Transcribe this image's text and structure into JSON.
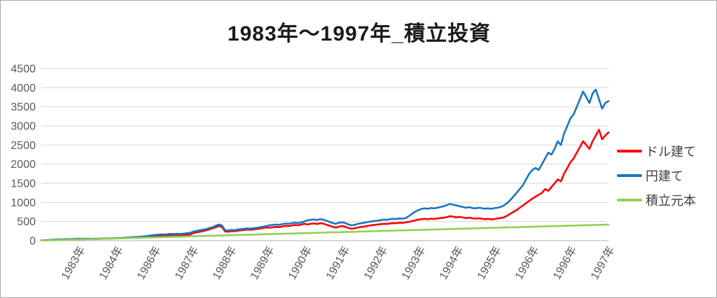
{
  "chart_data": {
    "type": "line",
    "title": "1983年〜1997年_積立投資",
    "x_tick_labels": [
      "1983年",
      "1984年",
      "1986年",
      "1987年",
      "1988年",
      "1989年",
      "1990年",
      "1991年",
      "1992年",
      "1993年",
      "1994年",
      "1995年",
      "1996年",
      "1996年",
      "1997年"
    ],
    "y_ticks": [
      0,
      500,
      1000,
      1500,
      2000,
      2500,
      3000,
      3500,
      4000,
      4500
    ],
    "ylim": [
      0,
      4500
    ],
    "grid": "horizontal",
    "legend_position": "right",
    "axis_label_color": "#595959",
    "gridline_color": "#d9d9d9",
    "axis_line_color": "#bfbfbf",
    "series": [
      {
        "name": "ドル建て",
        "color": "#ff0000",
        "values": [
          5,
          9,
          13,
          19,
          23,
          26,
          29,
          32,
          34,
          36,
          40,
          43,
          44,
          43,
          46,
          48,
          46,
          50,
          48,
          52,
          54,
          56,
          57,
          60,
          62,
          66,
          70,
          74,
          70,
          75,
          78,
          82,
          86,
          90,
          96,
          104,
          112,
          120,
          128,
          124,
          132,
          138,
          130,
          140,
          135,
          145,
          152,
          160,
          200,
          215,
          230,
          250,
          270,
          295,
          320,
          350,
          380,
          360,
          240,
          235,
          250,
          245,
          260,
          270,
          280,
          290,
          285,
          295,
          305,
          315,
          330,
          345,
          340,
          350,
          360,
          355,
          370,
          385,
          380,
          395,
          410,
          400,
          420,
          440,
          420,
          440,
          450,
          435,
          455,
          445,
          415,
          390,
          360,
          340,
          370,
          380,
          360,
          330,
          310,
          325,
          345,
          360,
          370,
          385,
          400,
          410,
          420,
          430,
          440,
          435,
          450,
          460,
          455,
          470,
          465,
          480,
          490,
          510,
          530,
          550,
          560,
          570,
          560,
          575,
          565,
          580,
          590,
          600,
          615,
          640,
          625,
          610,
          620,
          605,
          590,
          600,
          585,
          575,
          585,
          575,
          560,
          570,
          555,
          565,
          580,
          590,
          610,
          650,
          700,
          750,
          800,
          860,
          920,
          980,
          1040,
          1100,
          1150,
          1200,
          1250,
          1350,
          1300,
          1400,
          1500,
          1600,
          1550,
          1750,
          1900,
          2050,
          2150,
          2300,
          2450,
          2600,
          2500,
          2400,
          2600,
          2750,
          2900,
          2650,
          2750,
          2830
        ]
      },
      {
        "name": "円建て",
        "color": "#1776c4",
        "values": [
          5,
          9,
          14,
          20,
          24,
          28,
          30,
          33,
          35,
          38,
          42,
          45,
          45,
          44,
          47,
          50,
          48,
          52,
          50,
          54,
          56,
          58,
          60,
          62,
          66,
          70,
          75,
          80,
          85,
          90,
          96,
          102,
          110,
          118,
          128,
          140,
          150,
          158,
          165,
          160,
          170,
          178,
          172,
          180,
          175,
          185,
          195,
          205,
          238,
          255,
          270,
          285,
          300,
          330,
          350,
          390,
          420,
          400,
          270,
          265,
          280,
          275,
          290,
          300,
          310,
          320,
          315,
          325,
          335,
          350,
          365,
          380,
          400,
          410,
          420,
          415,
          430,
          445,
          440,
          455,
          470,
          460,
          480,
          500,
          530,
          545,
          555,
          540,
          560,
          550,
          520,
          490,
          460,
          440,
          470,
          480,
          460,
          420,
          400,
          415,
          440,
          455,
          470,
          485,
          500,
          510,
          520,
          535,
          550,
          545,
          560,
          570,
          565,
          580,
          575,
          590,
          640,
          700,
          760,
          800,
          830,
          845,
          835,
          855,
          845,
          860,
          880,
          900,
          930,
          960,
          940,
          920,
          900,
          880,
          860,
          875,
          855,
          845,
          860,
          850,
          835,
          845,
          830,
          850,
          860,
          880,
          920,
          980,
          1060,
          1150,
          1250,
          1350,
          1450,
          1600,
          1750,
          1850,
          1900,
          1850,
          2000,
          2150,
          2300,
          2250,
          2400,
          2600,
          2500,
          2800,
          3000,
          3200,
          3300,
          3500,
          3700,
          3900,
          3750,
          3600,
          3850,
          3950,
          3700,
          3450,
          3600,
          3650
        ]
      },
      {
        "name": "積立元本",
        "color": "#92d050",
        "values": [
          2,
          5,
          7,
          9,
          12,
          14,
          16,
          19,
          21,
          23,
          26,
          28,
          30,
          33,
          35,
          37,
          40,
          42,
          44,
          47,
          49,
          51,
          54,
          56,
          58,
          61,
          63,
          65,
          68,
          70,
          72,
          75,
          77,
          79,
          82,
          84,
          86,
          89,
          91,
          93,
          96,
          98,
          100,
          103,
          105,
          107,
          110,
          112,
          114,
          117,
          119,
          121,
          124,
          126,
          128,
          131,
          133,
          135,
          138,
          140,
          142,
          145,
          147,
          149,
          152,
          154,
          156,
          159,
          161,
          163,
          166,
          168,
          170,
          173,
          175,
          177,
          180,
          182,
          184,
          187,
          189,
          191,
          194,
          196,
          198,
          201,
          203,
          205,
          208,
          210,
          212,
          215,
          217,
          219,
          222,
          224,
          226,
          229,
          231,
          233,
          236,
          238,
          240,
          243,
          245,
          247,
          250,
          252,
          254,
          257,
          259,
          261,
          264,
          266,
          268,
          271,
          273,
          275,
          278,
          280,
          282,
          285,
          287,
          289,
          292,
          294,
          296,
          299,
          301,
          303,
          306,
          308,
          310,
          313,
          315,
          317,
          320,
          322,
          324,
          327,
          329,
          331,
          334,
          336,
          338,
          341,
          343,
          345,
          348,
          350,
          352,
          355,
          357,
          359,
          362,
          364,
          366,
          369,
          371,
          373,
          376,
          378,
          380,
          383,
          385,
          387,
          390,
          392,
          394,
          397,
          399,
          401,
          404,
          406,
          408,
          411,
          413,
          415,
          418,
          420
        ]
      }
    ]
  }
}
